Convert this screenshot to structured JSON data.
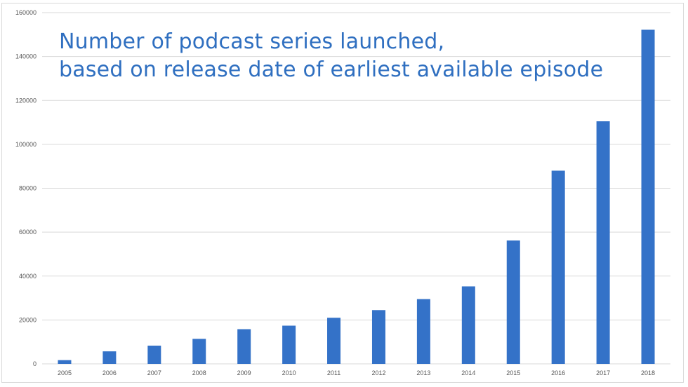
{
  "chart_data": {
    "type": "bar",
    "title": [
      "Number of podcast series launched,",
      "based on release date of earliest available episode"
    ],
    "xlabel": "",
    "ylabel": "",
    "categories": [
      "2005",
      "2006",
      "2007",
      "2008",
      "2009",
      "2010",
      "2011",
      "2012",
      "2013",
      "2014",
      "2015",
      "2016",
      "2017",
      "2018"
    ],
    "values": [
      1700,
      5700,
      8300,
      11400,
      15800,
      17400,
      21000,
      24500,
      29500,
      35300,
      56200,
      88000,
      110500,
      152200
    ],
    "ylim": [
      0,
      160000
    ],
    "yticks": [
      "0",
      "20000",
      "40000",
      "60000",
      "80000",
      "100000",
      "120000",
      "140000",
      "160000"
    ],
    "grid": true,
    "legend": "none",
    "bar_color": "#3472c8",
    "grid_color": "#d9d9d9",
    "title_color": "#2f6fc0"
  }
}
